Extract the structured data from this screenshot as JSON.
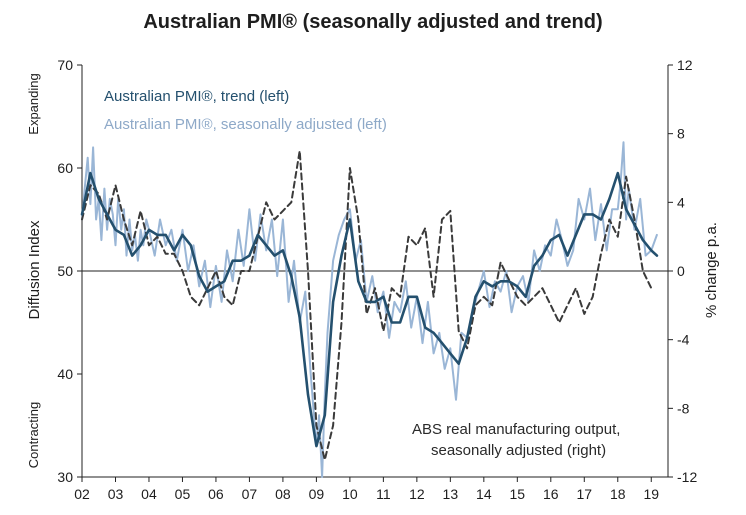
{
  "chart_data": {
    "type": "line",
    "title": "Australian PMI® (seasonally adjusted and trend)",
    "xlabel": "",
    "ylabel_left": "Diffusion Index",
    "ylabel_right": "% change p.a.",
    "ylim_left": [
      30,
      70
    ],
    "ylim_right": [
      -12,
      12
    ],
    "xlim": [
      2002,
      2019.5
    ],
    "x_tick_labels": [
      "02",
      "03",
      "04",
      "05",
      "06",
      "07",
      "08",
      "09",
      "10",
      "11",
      "12",
      "13",
      "14",
      "15",
      "16",
      "17",
      "18",
      "19"
    ],
    "y_ticks_left": [
      "30",
      "40",
      "50",
      "60",
      "70"
    ],
    "y_ticks_right": [
      "-12",
      "-8",
      "-4",
      "0",
      "4",
      "8",
      "12"
    ],
    "reference_line": {
      "axis": "left",
      "value": 50
    },
    "side_labels": {
      "top": "Expanding",
      "bottom": "Contracting"
    },
    "legend": [
      {
        "label": "Australian PMI®, trend (left)",
        "color": "#24506e"
      },
      {
        "label": "Australian PMI®, seasonally adjusted (left)",
        "color": "#9ab6d6"
      }
    ],
    "annotation": [
      "ABS real manufacturing output,",
      "seasonally adjusted (right)"
    ],
    "series": [
      {
        "name": "Australian PMI®, seasonally adjusted (left)",
        "axis": "left",
        "color": "#9ab6d6",
        "x": [
          2002.0,
          2002.08,
          2002.17,
          2002.25,
          2002.33,
          2002.42,
          2002.5,
          2002.58,
          2002.67,
          2002.75,
          2002.83,
          2002.92,
          2003.0,
          2003.08,
          2003.17,
          2003.25,
          2003.33,
          2003.42,
          2003.5,
          2003.58,
          2003.67,
          2003.75,
          2003.83,
          2003.92,
          2004.0,
          2004.17,
          2004.33,
          2004.5,
          2004.67,
          2004.83,
          2005.0,
          2005.17,
          2005.33,
          2005.5,
          2005.67,
          2005.83,
          2006.0,
          2006.17,
          2006.33,
          2006.5,
          2006.67,
          2006.83,
          2007.0,
          2007.17,
          2007.33,
          2007.5,
          2007.67,
          2007.83,
          2008.0,
          2008.17,
          2008.33,
          2008.5,
          2008.67,
          2008.83,
          2009.0,
          2009.08,
          2009.17,
          2009.25,
          2009.33,
          2009.5,
          2009.67,
          2009.83,
          2010.0,
          2010.17,
          2010.33,
          2010.5,
          2010.67,
          2010.83,
          2011.0,
          2011.17,
          2011.33,
          2011.5,
          2011.67,
          2011.83,
          2012.0,
          2012.17,
          2012.33,
          2012.5,
          2012.67,
          2012.83,
          2013.0,
          2013.17,
          2013.33,
          2013.5,
          2013.67,
          2013.83,
          2014.0,
          2014.17,
          2014.33,
          2014.5,
          2014.67,
          2014.83,
          2015.0,
          2015.17,
          2015.33,
          2015.5,
          2015.67,
          2015.83,
          2016.0,
          2016.17,
          2016.33,
          2016.5,
          2016.67,
          2016.83,
          2017.0,
          2017.17,
          2017.33,
          2017.5,
          2017.67,
          2017.83,
          2018.0,
          2018.08,
          2018.17,
          2018.25,
          2018.33,
          2018.5,
          2018.67,
          2018.83,
          2019.0,
          2019.17
        ],
        "values": [
          55,
          58,
          61,
          56.5,
          62,
          55,
          57,
          53,
          58,
          54,
          57,
          55.5,
          52.5,
          57,
          54,
          56,
          51.5,
          55,
          52,
          53.5,
          51,
          54,
          52.5,
          55,
          54,
          51.5,
          55,
          52.5,
          54,
          51,
          54,
          50,
          52.5,
          48.5,
          51,
          46.5,
          50.5,
          47,
          52,
          49,
          54,
          50.5,
          56,
          51,
          55.5,
          52,
          55,
          49.5,
          55,
          47,
          51,
          45,
          48,
          40,
          33,
          36,
          30,
          38,
          44,
          51,
          53.5,
          55,
          56,
          51,
          53,
          47,
          49.5,
          46,
          48,
          43.5,
          47,
          46,
          49,
          44.5,
          47.5,
          43,
          47,
          42,
          44,
          40.5,
          42.5,
          37.5,
          44,
          43.5,
          46,
          48,
          50,
          46.5,
          49,
          48,
          50,
          46,
          48.5,
          49.5,
          47,
          52,
          50,
          52.5,
          51.5,
          55,
          53,
          50.5,
          52,
          57,
          55,
          58,
          53,
          56.5,
          52,
          56,
          56,
          58.5,
          62.5,
          55,
          58,
          54,
          57,
          51.5,
          52,
          53.5
        ]
      },
      {
        "name": "Australian PMI®, trend (left)",
        "axis": "left",
        "color": "#24506e",
        "x": [
          2002.0,
          2002.25,
          2002.5,
          2002.75,
          2003.0,
          2003.25,
          2003.5,
          2003.75,
          2004.0,
          2004.25,
          2004.5,
          2004.75,
          2005.0,
          2005.25,
          2005.5,
          2005.75,
          2006.0,
          2006.25,
          2006.5,
          2006.75,
          2007.0,
          2007.25,
          2007.5,
          2007.75,
          2008.0,
          2008.25,
          2008.5,
          2008.75,
          2009.0,
          2009.25,
          2009.5,
          2009.75,
          2010.0,
          2010.25,
          2010.5,
          2010.75,
          2011.0,
          2011.25,
          2011.5,
          2011.75,
          2012.0,
          2012.25,
          2012.5,
          2012.75,
          2013.0,
          2013.25,
          2013.5,
          2013.75,
          2014.0,
          2014.25,
          2014.5,
          2014.75,
          2015.0,
          2015.25,
          2015.5,
          2015.75,
          2016.0,
          2016.25,
          2016.5,
          2016.75,
          2017.0,
          2017.25,
          2017.5,
          2017.75,
          2018.0,
          2018.25,
          2018.5,
          2018.75,
          2019.0,
          2019.17
        ],
        "values": [
          55.5,
          59.5,
          57,
          55.5,
          54,
          53.5,
          51.5,
          52.5,
          54,
          53.5,
          53.5,
          52,
          53.5,
          52.5,
          49.5,
          48,
          48.5,
          49,
          51,
          51,
          51.5,
          53.5,
          52.5,
          51.5,
          52,
          49.5,
          45.5,
          38,
          33,
          36,
          47,
          51.5,
          55,
          49,
          47,
          47,
          47.5,
          45,
          45,
          47.5,
          47.5,
          44.5,
          44,
          43,
          42,
          41,
          43.5,
          47.5,
          49,
          48.5,
          49,
          49,
          48.5,
          47.5,
          50.5,
          51.5,
          53,
          53.5,
          51.5,
          53.5,
          55.5,
          55.5,
          55,
          57,
          59.5,
          56,
          54.5,
          53,
          52,
          51.5
        ]
      },
      {
        "name": "ABS real manufacturing output, seasonally adjusted (right)",
        "axis": "right",
        "color": "#3a3a3a",
        "style": "dashed",
        "x": [
          2002.0,
          2002.25,
          2002.5,
          2002.75,
          2003.0,
          2003.25,
          2003.5,
          2003.75,
          2004.0,
          2004.25,
          2004.5,
          2004.75,
          2005.0,
          2005.25,
          2005.5,
          2005.75,
          2006.0,
          2006.25,
          2006.5,
          2006.75,
          2007.0,
          2007.25,
          2007.5,
          2007.75,
          2008.0,
          2008.25,
          2008.5,
          2008.75,
          2009.0,
          2009.25,
          2009.5,
          2009.75,
          2010.0,
          2010.25,
          2010.5,
          2010.75,
          2011.0,
          2011.25,
          2011.5,
          2011.75,
          2012.0,
          2012.25,
          2012.5,
          2012.75,
          2013.0,
          2013.25,
          2013.5,
          2013.75,
          2014.0,
          2014.25,
          2014.5,
          2014.75,
          2015.0,
          2015.25,
          2015.5,
          2015.75,
          2016.0,
          2016.25,
          2016.5,
          2016.75,
          2017.0,
          2017.25,
          2017.5,
          2017.75,
          2018.0,
          2018.25,
          2018.5,
          2018.75,
          2019.0
        ],
        "values": [
          3,
          5,
          4.5,
          3,
          5,
          3,
          1.5,
          3.5,
          1.5,
          2,
          1,
          1,
          0,
          -1.5,
          -2,
          -1,
          0,
          -1.5,
          -2,
          0,
          0,
          2,
          4,
          3,
          3.5,
          4,
          7,
          0,
          -9,
          -11,
          -9,
          -3,
          6,
          3,
          -2.5,
          -1,
          -3.5,
          -1,
          -1.5,
          2,
          1.5,
          2.5,
          -1.5,
          3,
          3.5,
          -3.5,
          -4.5,
          -2,
          -1.5,
          -2,
          0.5,
          -0.5,
          -1.5,
          -2,
          -1.5,
          -1,
          -2,
          -3,
          -2,
          -1,
          -2.5,
          -1.5,
          1,
          3,
          2,
          5.5,
          3,
          0,
          -1
        ]
      }
    ]
  }
}
